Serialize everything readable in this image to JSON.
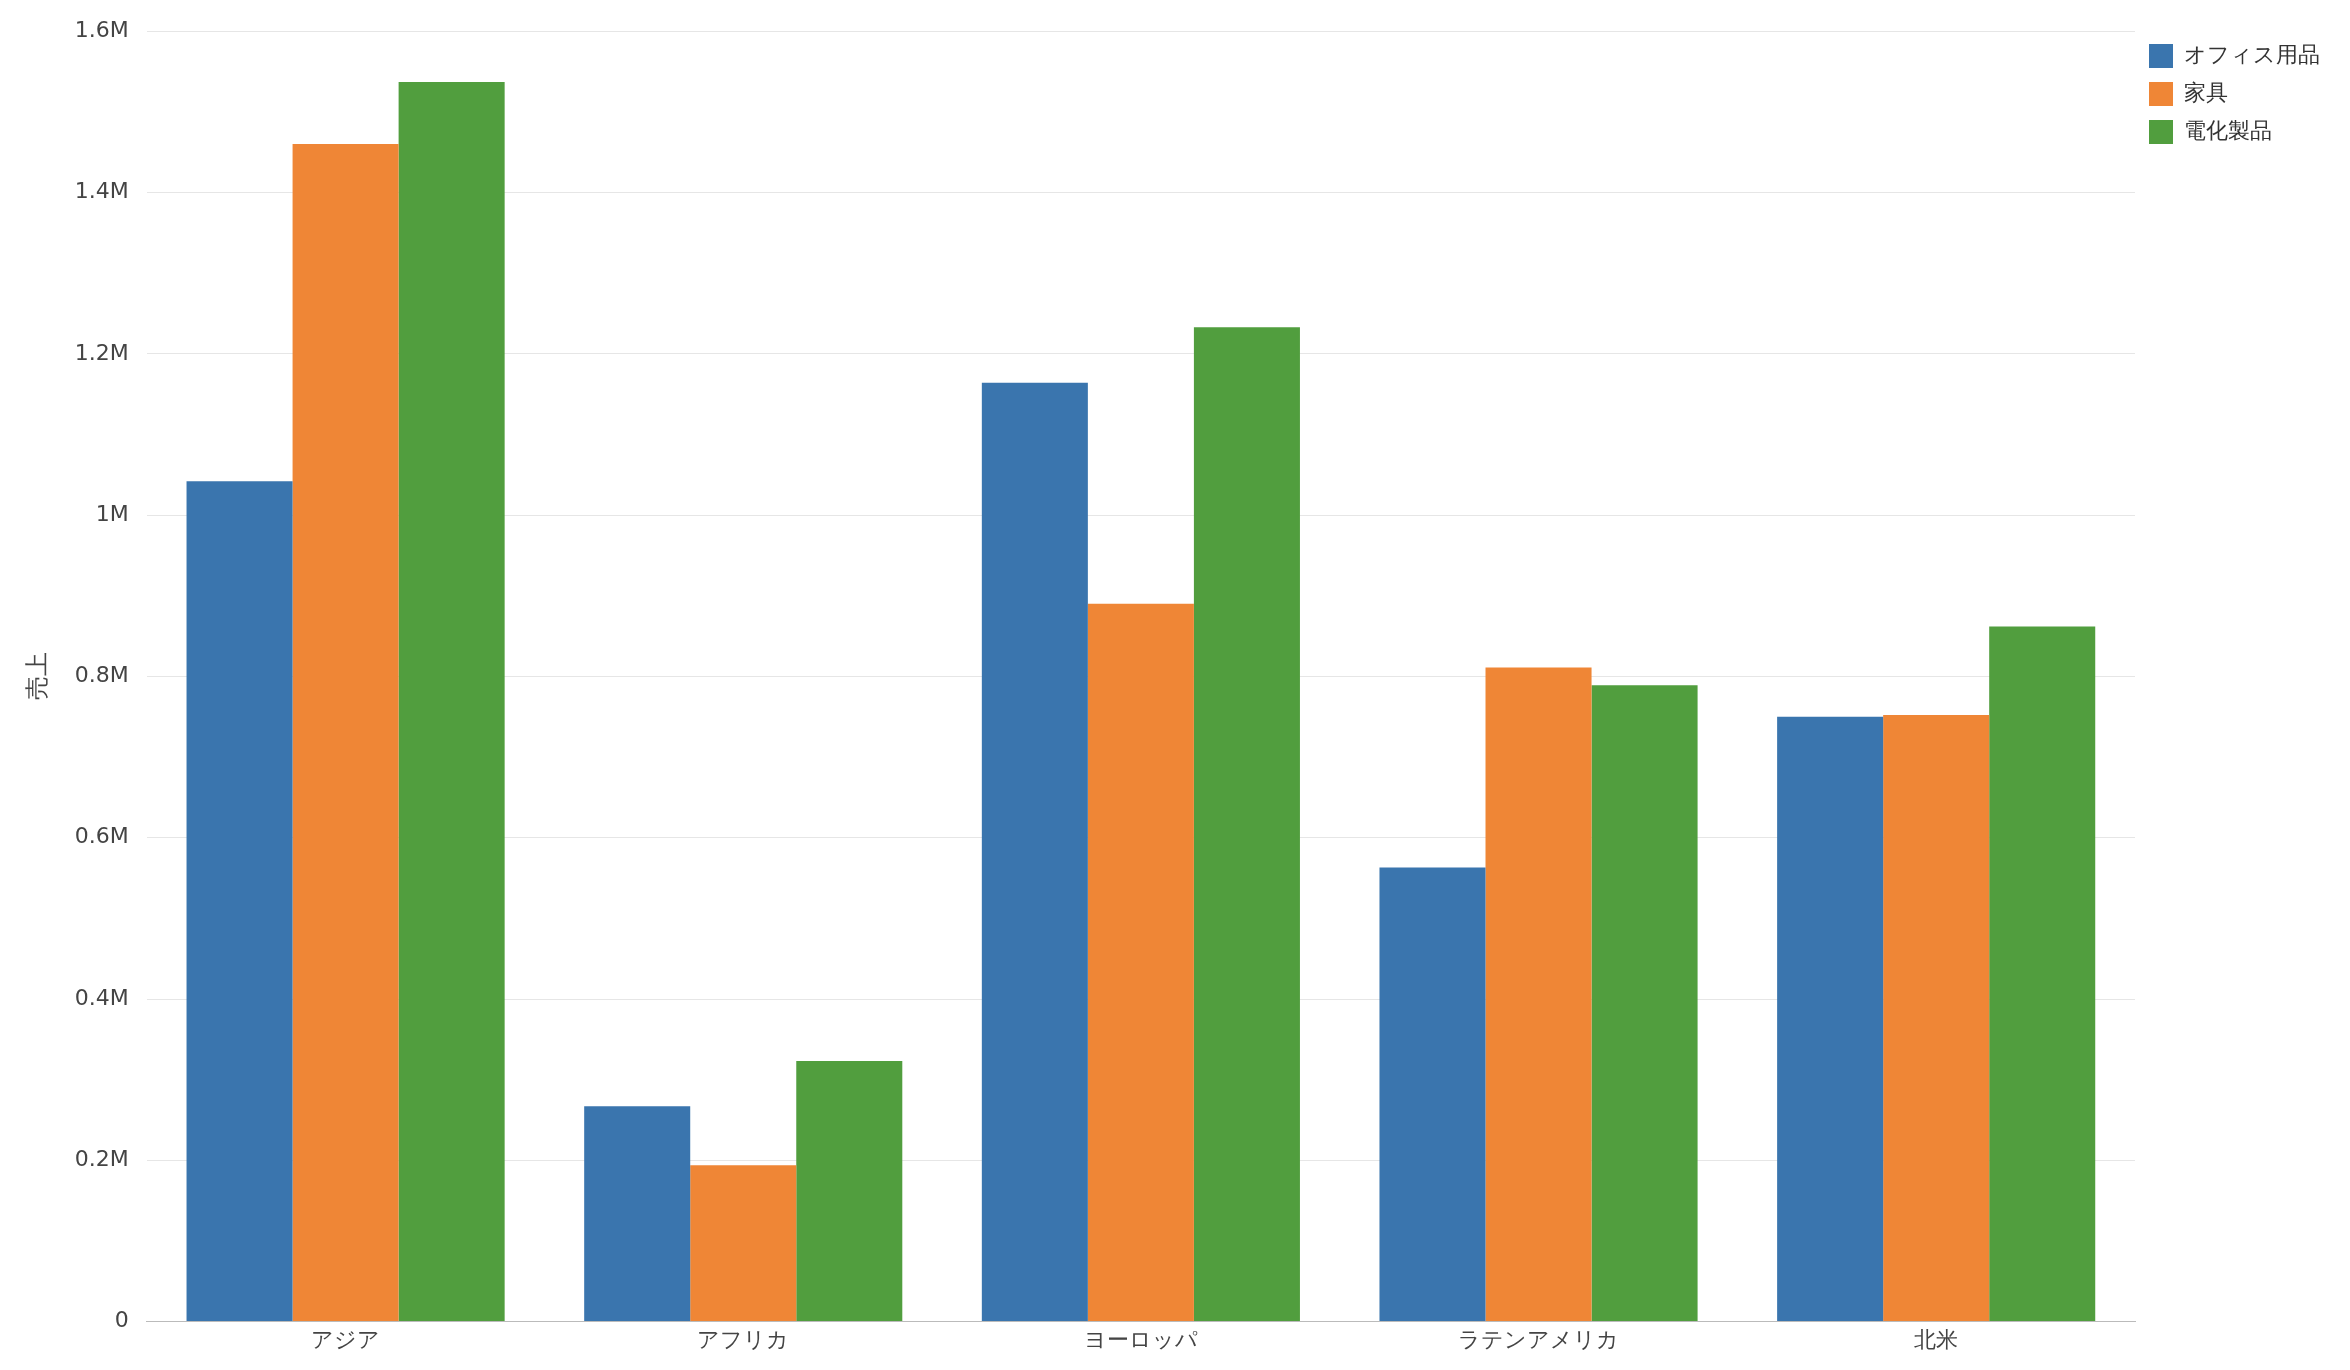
{
  "chart_data": {
    "type": "bar",
    "ylabel": "売上",
    "categories": [
      "アジア",
      "アフリカ",
      "ヨーロッパ",
      "ラテンアメリカ",
      "北米"
    ],
    "series": [
      {
        "name": "オフィス用品",
        "color": "#3a75ae",
        "values": [
          1.042,
          0.267,
          1.164,
          0.563,
          0.75
        ]
      },
      {
        "name": "家具",
        "color": "#ef8636",
        "values": [
          1.46,
          0.194,
          0.89,
          0.811,
          0.752
        ]
      },
      {
        "name": "電化製品",
        "color": "#519e3e",
        "values": [
          1.537,
          0.323,
          1.233,
          0.789,
          0.862
        ]
      }
    ],
    "ylim": [
      0,
      1.6
    ],
    "yticks": [
      0,
      {
        "value": 0.2,
        "label": "0.2M"
      },
      {
        "value": 0.4,
        "label": "0.4M"
      },
      {
        "value": 0.6,
        "label": "0.6M"
      },
      {
        "value": 0.8,
        "label": "0.8M"
      },
      {
        "value": 1,
        "label": "1M"
      },
      {
        "value": 1.2,
        "label": "1.2M"
      },
      {
        "value": 1.4,
        "label": "1.4M"
      },
      {
        "value": 1.6,
        "label": "1.6M"
      }
    ],
    "grid": "y",
    "legend": "top right"
  }
}
